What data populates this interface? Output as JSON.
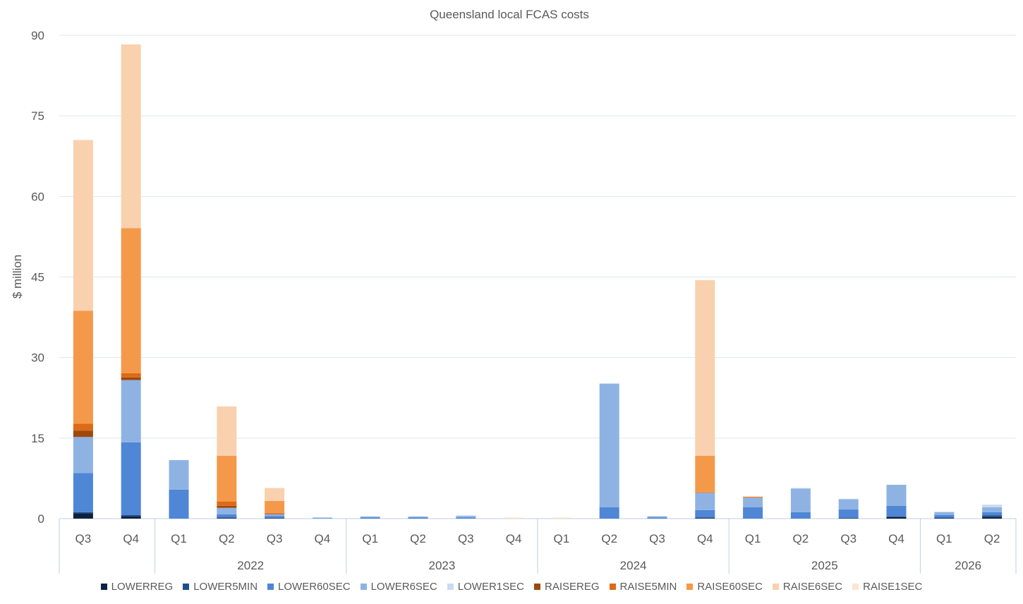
{
  "chart_data": {
    "type": "bar",
    "stacked": true,
    "title": "Queensland local FCAS costs",
    "ylabel": "$ million",
    "xlabel": "",
    "ylim": [
      0,
      90
    ],
    "yticks": [
      0,
      15,
      30,
      45,
      60,
      75,
      90
    ],
    "grid": true,
    "legend_position": "bottom",
    "categories": [
      "Q3",
      "Q4",
      "Q1",
      "Q2",
      "Q3",
      "Q4",
      "Q1",
      "Q2",
      "Q3",
      "Q4",
      "Q1",
      "Q2",
      "Q3",
      "Q4",
      "Q1",
      "Q2",
      "Q3",
      "Q4",
      "Q1",
      "Q2"
    ],
    "year_groups": [
      {
        "label": "",
        "count": 2
      },
      {
        "label": "2022",
        "count": 4
      },
      {
        "label": "2023",
        "count": 4
      },
      {
        "label": "2024",
        "count": 4
      },
      {
        "label": "2025",
        "count": 4
      },
      {
        "label": "2026",
        "count": 2
      }
    ],
    "series": [
      {
        "name": "LOWERREG",
        "color": "#0d2240",
        "values": [
          1.0,
          0.4,
          0,
          0.1,
          0.1,
          0,
          0,
          0,
          0,
          0,
          0,
          0,
          0,
          0.1,
          0,
          0,
          0.1,
          0.3,
          0.1,
          0.3
        ]
      },
      {
        "name": "LOWER5MIN",
        "color": "#1f4e8c",
        "values": [
          0.2,
          0.3,
          0,
          0.1,
          0,
          0,
          0,
          0,
          0,
          0,
          0,
          0,
          0,
          0.1,
          0,
          0,
          0,
          0.1,
          0.1,
          0.3
        ]
      },
      {
        "name": "LOWER60SEC",
        "color": "#4f86d6",
        "values": [
          7.3,
          13.5,
          5.4,
          0.6,
          0.4,
          0.1,
          0.2,
          0.2,
          0.2,
          0,
          0,
          2.1,
          0.2,
          1.4,
          2.1,
          1.2,
          1.6,
          2.0,
          0.5,
          0.6
        ]
      },
      {
        "name": "LOWER6SEC",
        "color": "#8eb3e3",
        "values": [
          6.7,
          11.6,
          5.5,
          1.2,
          0.3,
          0.1,
          0.2,
          0.2,
          0.3,
          0,
          0,
          23.0,
          0.2,
          3.2,
          1.8,
          4.4,
          1.9,
          3.9,
          0.5,
          0.9
        ]
      },
      {
        "name": "LOWER1SEC",
        "color": "#c9daf1",
        "values": [
          0,
          0,
          0,
          0,
          0,
          0,
          0,
          0,
          0.1,
          0,
          0,
          0.1,
          0.1,
          0,
          0,
          0.1,
          0.1,
          0,
          0.1,
          0.5
        ]
      },
      {
        "name": "RAISEREG",
        "color": "#9e480e",
        "values": [
          1.2,
          0.5,
          0,
          0.4,
          0.1,
          0,
          0,
          0,
          0,
          0,
          0,
          0,
          0,
          0,
          0,
          0,
          0,
          0,
          0,
          0
        ]
      },
      {
        "name": "RAISE5MIN",
        "color": "#dd6a17",
        "values": [
          1.3,
          0.8,
          0,
          0.8,
          0.1,
          0,
          0,
          0,
          0,
          0,
          0,
          0,
          0,
          0.1,
          0.1,
          0,
          0,
          0,
          0,
          0
        ]
      },
      {
        "name": "RAISE60SEC",
        "color": "#f4994a",
        "values": [
          21.0,
          27.0,
          0,
          8.5,
          2.3,
          0,
          0,
          0,
          0,
          0,
          0,
          0,
          0,
          6.8,
          0.1,
          0,
          0,
          0,
          0,
          0
        ]
      },
      {
        "name": "RAISE6SEC",
        "color": "#f9d1ae",
        "values": [
          31.8,
          34.2,
          0,
          9.2,
          2.4,
          0,
          0,
          0,
          0,
          0.1,
          0.1,
          0,
          0,
          32.7,
          0,
          0,
          0,
          0,
          0,
          0
        ]
      },
      {
        "name": "RAISE1SEC",
        "color": "#fce5d4",
        "values": [
          0,
          0,
          0,
          0,
          0,
          0,
          0,
          0,
          0,
          0.1,
          0.1,
          0,
          0,
          0,
          0,
          0,
          0,
          0,
          0,
          0
        ]
      }
    ]
  }
}
